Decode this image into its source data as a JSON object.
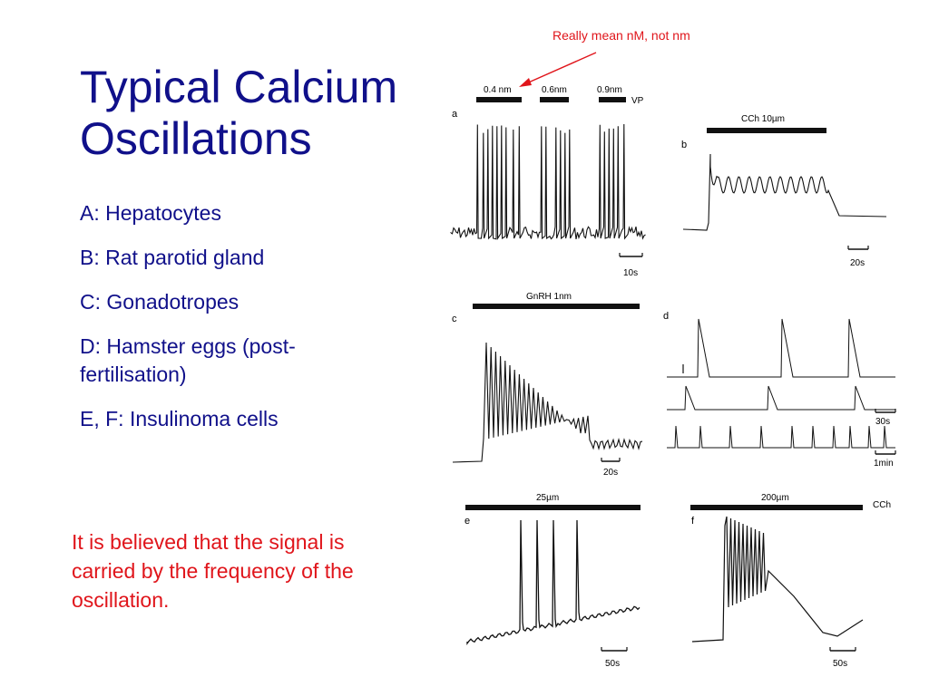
{
  "slide": {
    "title_line1": "Typical Calcium",
    "title_line2": "Oscillations",
    "bullets": [
      "A: Hepatocytes",
      "B: Rat parotid gland",
      "C: Gonadotropes",
      "D: Hamster eggs (post-fertilisation)",
      "E, F: Insulinoma cells"
    ],
    "annotation": "Really mean nM, not nm",
    "conclusion": "It is believed that the signal is carried by the frequency of the oscillation."
  },
  "colors": {
    "title": "#10108a",
    "text": "#10108a",
    "accent_red": "#e0151b",
    "trace": "#111111"
  },
  "panels": {
    "a": {
      "letter": "a",
      "stimuli": [
        "0.4 nm",
        "0.6nm",
        "0.9nm"
      ],
      "agent": "VP",
      "scale": "10s"
    },
    "b": {
      "letter": "b",
      "stimulus": "CCh  10µm",
      "scale": "20s"
    },
    "c": {
      "letter": "c",
      "stimulus": "GnRH     1nm",
      "scale": "20s"
    },
    "d": {
      "letter": "d",
      "scale_1": "30s",
      "scale_2": "1min"
    },
    "e": {
      "letter": "e",
      "stimulus": "25µm",
      "scale": "50s"
    },
    "f": {
      "letter": "f",
      "stimulus": "200µm",
      "agent": "CCh",
      "scale": "50s"
    }
  }
}
